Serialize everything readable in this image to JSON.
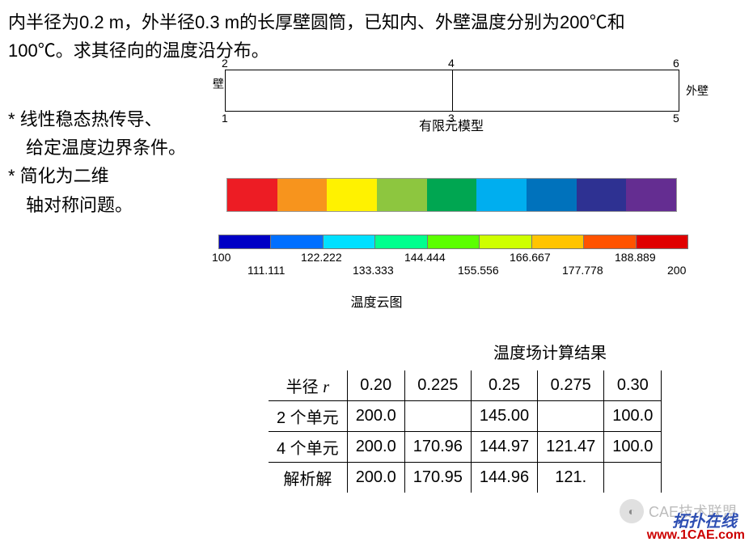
{
  "problem": {
    "line1": "内半径为0.2 m，外半径0.3 m的长厚壁圆筒，已知内、外壁温度分别为200℃和",
    "line2": "100℃。求其径向的温度沿分布。"
  },
  "notes": {
    "line1": "* 线性稳态热传导、",
    "line2": "　给定温度边界条件。",
    "line3": "* 简化为二维",
    "line4": "　轴对称问题。"
  },
  "feModel": {
    "labels": {
      "n1": "1",
      "n2": "2",
      "n3": "3",
      "n4": "4",
      "n5": "5",
      "n6": "6"
    },
    "innerWall": "壁",
    "outerWall": "外壁",
    "caption": "有限元模型"
  },
  "contour": {
    "colors": [
      "#ed1c24",
      "#f7941d",
      "#fff200",
      "#8dc63f",
      "#00a651",
      "#00aeef",
      "#0072bc",
      "#2e3192",
      "#642d91"
    ],
    "scaleColors": [
      "#0000c5",
      "#006fff",
      "#00e0ff",
      "#00ff8e",
      "#5bff00",
      "#ceff00",
      "#ffc400",
      "#ff5300",
      "#e00000"
    ],
    "scaleLabels": {
      "l0": "100",
      "l1": "111.111",
      "l2": "122.222",
      "l3": "133.333",
      "l4": "144.444",
      "l5": "155.556",
      "l6": "166.667",
      "l7": "177.778",
      "l8": "188.889",
      "l9": "200"
    },
    "caption": "温度云图"
  },
  "table": {
    "caption": "温度场计算结果",
    "header": {
      "c0": "半径 r",
      "c1": "0.20",
      "c2": "0.225",
      "c3": "0.25",
      "c4": "0.275",
      "c5": "0.30"
    },
    "row1": {
      "c0": "2 个单元",
      "c1": "200.0",
      "c2": "",
      "c3": "145.00",
      "c4": "",
      "c5": "100.0"
    },
    "row2": {
      "c0": "4 个单元",
      "c1": "200.0",
      "c2": "170.96",
      "c3": "144.97",
      "c4": "121.47",
      "c5": "100.0"
    },
    "row3": {
      "c0": "解析解",
      "c1": "200.0",
      "c2": "170.95",
      "c3": "144.96",
      "c4": "121.",
      "c5": ""
    }
  },
  "watermarks": {
    "cae": "CAE技术联盟",
    "tuopan": "拓扑在线",
    "site": "www.1CAE.com"
  }
}
